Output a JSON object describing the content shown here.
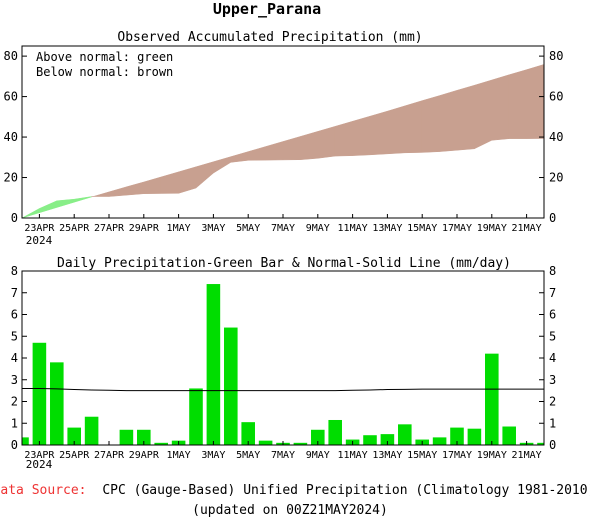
{
  "page_title": "Upper_Parana",
  "footer": {
    "source_label": "Data Source:",
    "source_text": "CPC (Gauge-Based) Unified Precipitation (Climatology 1981-2010)",
    "updated_text": "(updated on 00Z21MAY2024)"
  },
  "colors": {
    "above_normal": "#88ee88",
    "below_normal": "#c8a090",
    "daily_bar": "#00dd00",
    "source_label": "#ee3333"
  },
  "chart_data": [
    {
      "type": "area",
      "title": "Observed Accumulated Precipitation (mm)",
      "legend": [
        "Above normal: green",
        "Below normal: brown"
      ],
      "legend_position": "top-left",
      "x_ticks": [
        "23APR",
        "25APR",
        "27APR",
        "29APR",
        "1MAY",
        "3MAY",
        "5MAY",
        "7MAY",
        "9MAY",
        "11MAY",
        "13MAY",
        "15MAY",
        "17MAY",
        "19MAY",
        "21MAY"
      ],
      "x_year_label": "2024",
      "ylim": [
        0,
        85
      ],
      "y_ticks": [
        0,
        20,
        40,
        60,
        80
      ],
      "x_days": [
        0,
        1,
        2,
        3,
        4,
        5,
        6,
        7,
        8,
        9,
        10,
        11,
        12,
        13,
        14,
        15,
        16,
        17,
        18,
        19,
        20,
        21,
        22,
        23,
        24,
        25,
        26,
        27,
        28,
        29,
        30
      ],
      "normal": [
        0,
        2.6,
        5.2,
        7.8,
        10.4,
        12.9,
        15.4,
        17.8,
        20.3,
        22.8,
        25.3,
        27.8,
        30.3,
        32.8,
        35.3,
        37.8,
        40.3,
        42.8,
        45.3,
        47.8,
        50.3,
        52.8,
        55.4,
        58.0,
        60.5,
        63.1,
        65.6,
        68.2,
        70.8,
        73.3,
        75.9
      ],
      "observed": [
        0,
        4.7,
        8.5,
        9.3,
        10.6,
        10.6,
        11.3,
        12.0,
        12.1,
        12.2,
        14.8,
        22.2,
        27.5,
        28.5,
        28.6,
        28.7,
        28.8,
        29.5,
        30.6,
        30.8,
        31.2,
        31.7,
        32.2,
        32.4,
        32.8,
        33.5,
        34.2,
        38.4,
        39.2,
        39.2,
        39.3
      ]
    },
    {
      "type": "bar",
      "title": "Daily Precipitation-Green Bar & Normal-Solid Line (mm/day)",
      "x_ticks": [
        "23APR",
        "25APR",
        "27APR",
        "29APR",
        "1MAY",
        "3MAY",
        "5MAY",
        "7MAY",
        "9MAY",
        "11MAY",
        "13MAY",
        "15MAY",
        "17MAY",
        "19MAY",
        "21MAY"
      ],
      "x_year_label": "2024",
      "ylim": [
        0,
        8
      ],
      "y_ticks": [
        0,
        1,
        2,
        3,
        4,
        5,
        6,
        7,
        8
      ],
      "x_days": [
        0,
        1,
        2,
        3,
        4,
        5,
        6,
        7,
        8,
        9,
        10,
        11,
        12,
        13,
        14,
        15,
        16,
        17,
        18,
        19,
        20,
        21,
        22,
        23,
        24,
        25,
        26,
        27,
        28,
        29,
        30
      ],
      "values": [
        0.35,
        4.7,
        3.8,
        0.8,
        1.3,
        0.0,
        0.7,
        0.7,
        0.1,
        0.2,
        2.6,
        7.4,
        5.4,
        1.05,
        0.2,
        0.1,
        0.1,
        0.7,
        1.15,
        0.25,
        0.45,
        0.5,
        0.95,
        0.25,
        0.35,
        0.8,
        0.75,
        4.2,
        0.85,
        0.1,
        0.1
      ],
      "normal": [
        2.6,
        2.6,
        2.58,
        2.55,
        2.53,
        2.52,
        2.5,
        2.5,
        2.5,
        2.5,
        2.5,
        2.5,
        2.5,
        2.5,
        2.5,
        2.5,
        2.5,
        2.5,
        2.5,
        2.52,
        2.53,
        2.55,
        2.56,
        2.57,
        2.57,
        2.57,
        2.57,
        2.57,
        2.57,
        2.57,
        2.57
      ]
    }
  ]
}
